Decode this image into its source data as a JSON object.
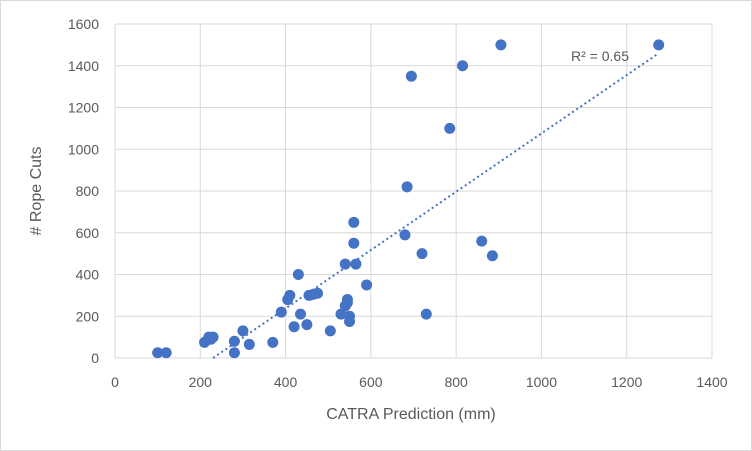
{
  "chart_data": {
    "type": "scatter",
    "title": "",
    "xlabel": "CATRA Prediction (mm)",
    "ylabel": "# Rope Cuts",
    "xlim": [
      0,
      1400
    ],
    "ylim": [
      0,
      1600
    ],
    "xticks": [
      0,
      200,
      400,
      600,
      800,
      1000,
      1200,
      1400
    ],
    "yticks": [
      0,
      200,
      400,
      600,
      800,
      1000,
      1200,
      1400,
      1600
    ],
    "grid": true,
    "legend": "none",
    "colors": {
      "marker": "#4472c4",
      "trendline": "#4472c4",
      "grid": "#d9d9d9",
      "text": "#595959"
    },
    "trendline": {
      "type": "linear",
      "label": "R² = 0.65",
      "x": [
        230,
        1275
      ],
      "y": [
        0,
        1460
      ]
    },
    "series": [
      {
        "name": "Rope Cuts",
        "points": [
          [
            100,
            25
          ],
          [
            120,
            25
          ],
          [
            210,
            75
          ],
          [
            220,
            100
          ],
          [
            225,
            90
          ],
          [
            230,
            100
          ],
          [
            280,
            25
          ],
          [
            280,
            80
          ],
          [
            300,
            130
          ],
          [
            315,
            65
          ],
          [
            370,
            75
          ],
          [
            390,
            220
          ],
          [
            405,
            280
          ],
          [
            410,
            300
          ],
          [
            420,
            150
          ],
          [
            430,
            400
          ],
          [
            435,
            210
          ],
          [
            450,
            160
          ],
          [
            455,
            300
          ],
          [
            465,
            305
          ],
          [
            475,
            310
          ],
          [
            505,
            130
          ],
          [
            530,
            210
          ],
          [
            540,
            250
          ],
          [
            540,
            450
          ],
          [
            545,
            265
          ],
          [
            545,
            280
          ],
          [
            550,
            200
          ],
          [
            550,
            175
          ],
          [
            560,
            650
          ],
          [
            560,
            550
          ],
          [
            565,
            450
          ],
          [
            590,
            350
          ],
          [
            680,
            590
          ],
          [
            685,
            820
          ],
          [
            695,
            1350
          ],
          [
            720,
            500
          ],
          [
            730,
            210
          ],
          [
            785,
            1100
          ],
          [
            815,
            1400
          ],
          [
            860,
            560
          ],
          [
            885,
            490
          ],
          [
            905,
            1500
          ],
          [
            1275,
            1500
          ]
        ]
      }
    ]
  }
}
